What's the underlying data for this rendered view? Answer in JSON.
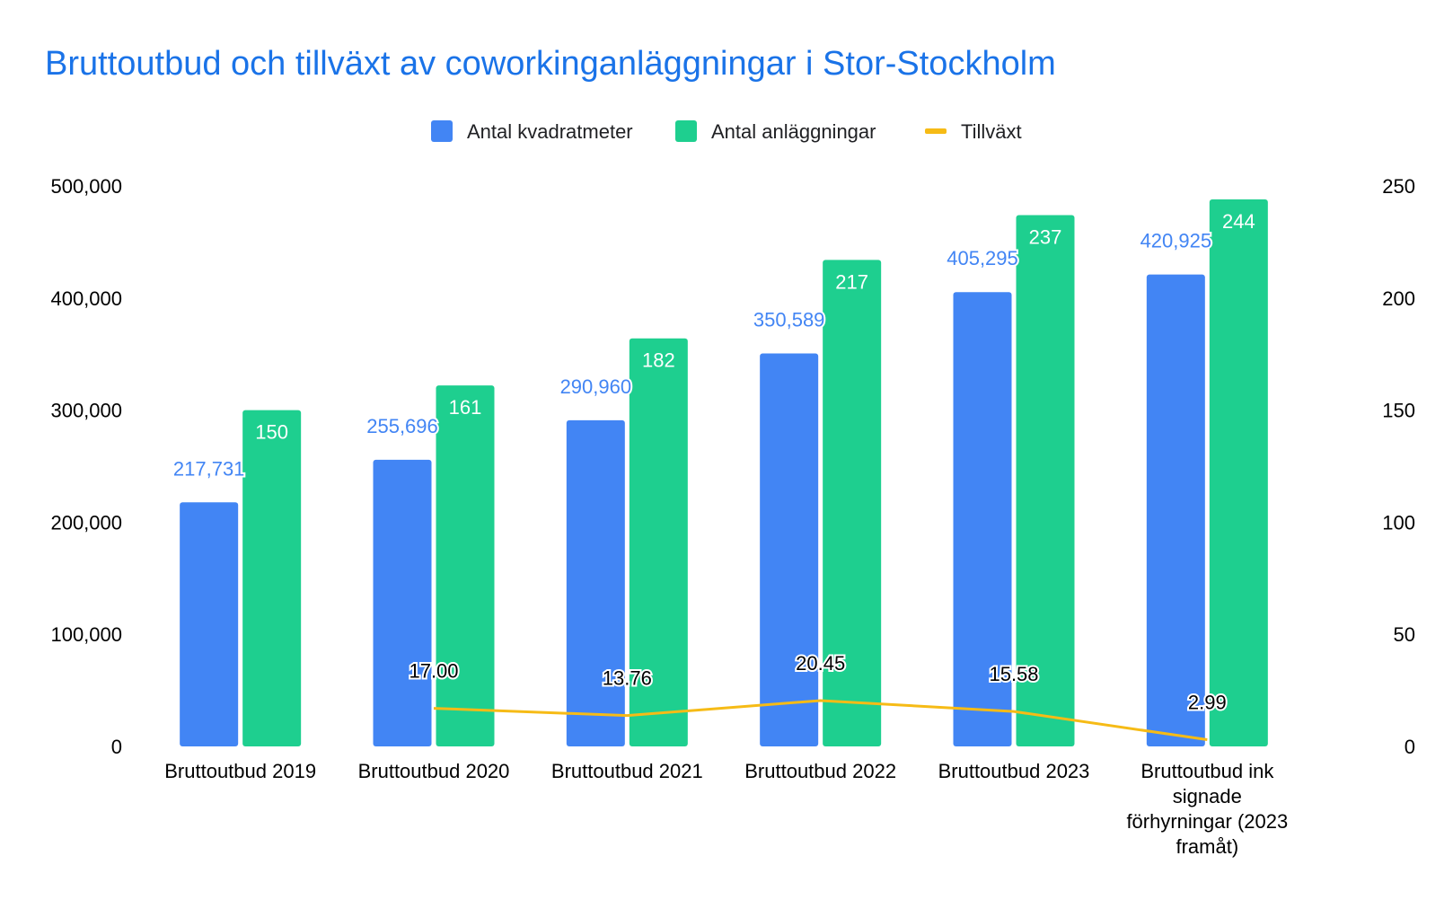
{
  "chart_data": {
    "type": "bar",
    "title": "Bruttoutbud och tillväxt av coworkinganläggningar i Stor-Stockholm",
    "categories": [
      [
        "Bruttoutbud 2019"
      ],
      [
        "Bruttoutbud 2020"
      ],
      [
        "Bruttoutbud 2021"
      ],
      [
        "Bruttoutbud 2022"
      ],
      [
        "Bruttoutbud 2023"
      ],
      [
        "Bruttoutbud ink",
        "signade",
        "förhyrningar (2023",
        "framåt)"
      ]
    ],
    "series": [
      {
        "name": "Antal kvadratmeter",
        "type": "bar",
        "axis": "left",
        "color": "#4285f4",
        "values": [
          217731,
          255696,
          290960,
          350589,
          405295,
          420925
        ],
        "labels": [
          "217,731",
          "255,696",
          "290,960",
          "350,589",
          "405,295",
          "420,925"
        ]
      },
      {
        "name": "Antal anläggningar",
        "type": "bar",
        "axis": "right",
        "color": "#1ecf8f",
        "values": [
          150,
          161,
          182,
          217,
          237,
          244
        ],
        "labels": [
          "150",
          "161",
          "182",
          "217",
          "237",
          "244"
        ]
      },
      {
        "name": "Tillväxt",
        "type": "line",
        "axis": "right",
        "color": "#f6bb16",
        "values": [
          null,
          17.0,
          13.76,
          20.45,
          15.58,
          2.99
        ],
        "labels": [
          "",
          "17.00",
          "13.76",
          "20.45",
          "15.58",
          "2.99"
        ]
      }
    ],
    "y_left": {
      "ylim": [
        0,
        500000
      ],
      "ticks": [
        "0",
        "100,000",
        "200,000",
        "300,000",
        "400,000",
        "500,000"
      ]
    },
    "y_right": {
      "ylim": [
        0,
        250
      ],
      "ticks": [
        "0",
        "50",
        "100",
        "150",
        "200",
        "250"
      ]
    },
    "legend_position": "top-center",
    "grid": false
  }
}
